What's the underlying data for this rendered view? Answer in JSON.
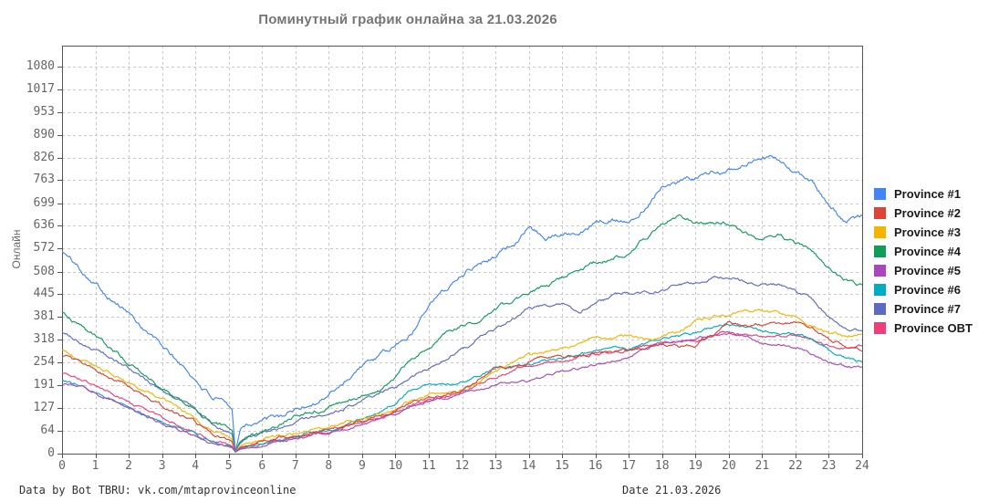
{
  "footer": {
    "left": "Data by Bot TBRU: vk.com/mtaprovinceonline",
    "right": "Date 21.03.2026"
  },
  "chart_data": {
    "type": "line",
    "title": "Поминутный график онлайна за 21.03.2026",
    "xlabel": "",
    "ylabel": "Онлайн",
    "xlim": [
      0,
      24
    ],
    "ylim": [
      0,
      1144
    ],
    "x_ticks": [
      0,
      1,
      2,
      3,
      4,
      5,
      6,
      7,
      8,
      9,
      10,
      11,
      12,
      13,
      14,
      15,
      16,
      17,
      18,
      19,
      20,
      21,
      22,
      23,
      24
    ],
    "y_ticks": [
      0,
      64,
      127,
      191,
      254,
      318,
      381,
      445,
      508,
      572,
      636,
      699,
      763,
      826,
      890,
      953,
      1017,
      1080
    ],
    "grid": "dashed",
    "legend_position": "right",
    "annotation": "all series drop to ~0 at ~05:10 (server restart) then recover",
    "hours": [
      0,
      0.5,
      1,
      1.5,
      2,
      2.5,
      3,
      3.5,
      4,
      4.5,
      5,
      5.1,
      5.2,
      5.35,
      5.5,
      6,
      6.5,
      7,
      7.5,
      8,
      8.5,
      9,
      9.5,
      10,
      10.5,
      11,
      11.5,
      12,
      12.5,
      13,
      13.5,
      14,
      14.5,
      15,
      15.5,
      16,
      16.5,
      17,
      17.5,
      18,
      18.5,
      19,
      19.5,
      20,
      20.5,
      21,
      21.5,
      22,
      22.5,
      23,
      23.5,
      24
    ],
    "series": [
      {
        "name": "Province #1",
        "color": "#4285F4",
        "seed": 101,
        "noise": 9,
        "values": [
          565,
          520,
          478,
          432,
          392,
          345,
          300,
          255,
          205,
          158,
          130,
          122,
          6,
          70,
          85,
          93,
          100,
          122,
          140,
          162,
          205,
          248,
          268,
          300,
          335,
          425,
          458,
          505,
          532,
          556,
          580,
          635,
          598,
          612,
          625,
          642,
          658,
          642,
          690,
          752,
          758,
          768,
          782,
          792,
          806,
          818,
          822,
          782,
          762,
          692,
          648,
          662
        ]
      },
      {
        "name": "Province #2",
        "color": "#DB4437",
        "seed": 102,
        "noise": 6,
        "values": [
          272,
          254,
          232,
          210,
          186,
          160,
          135,
          110,
          85,
          55,
          40,
          35,
          6,
          18,
          24,
          34,
          45,
          52,
          60,
          68,
          80,
          92,
          105,
          120,
          140,
          155,
          165,
          172,
          208,
          246,
          244,
          262,
          270,
          272,
          276,
          280,
          286,
          290,
          296,
          306,
          300,
          304,
          332,
          366,
          360,
          362,
          366,
          366,
          350,
          318,
          300,
          290
        ]
      },
      {
        "name": "Province #3",
        "color": "#F4B400",
        "seed": 103,
        "noise": 6,
        "values": [
          290,
          268,
          246,
          224,
          200,
          175,
          150,
          124,
          96,
          62,
          46,
          40,
          7,
          22,
          30,
          40,
          50,
          58,
          65,
          73,
          85,
          96,
          110,
          126,
          150,
          165,
          172,
          178,
          200,
          230,
          256,
          271,
          285,
          296,
          310,
          322,
          326,
          328,
          320,
          324,
          346,
          366,
          380,
          392,
          406,
          400,
          390,
          379,
          360,
          338,
          330,
          336
        ]
      },
      {
        "name": "Province #4",
        "color": "#0F9D58",
        "seed": 104,
        "noise": 7,
        "values": [
          390,
          358,
          326,
          292,
          256,
          216,
          182,
          152,
          126,
          86,
          70,
          64,
          8,
          35,
          45,
          62,
          85,
          104,
          114,
          126,
          146,
          158,
          172,
          215,
          272,
          300,
          330,
          356,
          376,
          400,
          426,
          450,
          470,
          490,
          514,
          534,
          546,
          560,
          602,
          640,
          664,
          648,
          650,
          645,
          618,
          602,
          614,
          586,
          570,
          516,
          482,
          470
        ]
      },
      {
        "name": "Province #5",
        "color": "#AB47BC",
        "seed": 105,
        "noise": 5,
        "values": [
          196,
          184,
          166,
          148,
          128,
          108,
          88,
          68,
          48,
          30,
          20,
          17,
          5,
          12,
          15,
          22,
          32,
          42,
          50,
          58,
          70,
          82,
          95,
          110,
          132,
          146,
          158,
          166,
          180,
          190,
          198,
          205,
          215,
          227,
          238,
          247,
          258,
          268,
          290,
          306,
          310,
          319,
          330,
          341,
          330,
          312,
          305,
          298,
          280,
          252,
          240,
          247
        ]
      },
      {
        "name": "Province #6",
        "color": "#00ACC1",
        "seed": 106,
        "noise": 5,
        "values": [
          206,
          192,
          172,
          152,
          131,
          110,
          90,
          70,
          50,
          32,
          22,
          18,
          4,
          14,
          18,
          26,
          36,
          46,
          56,
          66,
          80,
          96,
          116,
          142,
          178,
          190,
          196,
          198,
          212,
          236,
          246,
          250,
          256,
          264,
          276,
          286,
          296,
          298,
          310,
          320,
          326,
          336,
          350,
          360,
          354,
          344,
          340,
          336,
          320,
          290,
          268,
          254
        ]
      },
      {
        "name": "Province #7",
        "color": "#5C6BC0",
        "seed": 107,
        "noise": 6,
        "values": [
          336,
          314,
          290,
          264,
          236,
          206,
          176,
          150,
          124,
          82,
          62,
          56,
          7,
          30,
          40,
          55,
          72,
          90,
          100,
          112,
          130,
          148,
          166,
          186,
          212,
          236,
          262,
          290,
          320,
          346,
          376,
          404,
          410,
          418,
          392,
          420,
          436,
          445,
          450,
          456,
          470,
          480,
          494,
          490,
          480,
          470,
          470,
          455,
          430,
          380,
          348,
          342
        ]
      },
      {
        "name": "Province OBT",
        "color": "#EC407A",
        "seed": 108,
        "noise": 5,
        "values": [
          226,
          210,
          190,
          168,
          146,
          122,
          100,
          80,
          58,
          36,
          25,
          21,
          5,
          14,
          19,
          28,
          38,
          48,
          56,
          64,
          76,
          88,
          100,
          116,
          136,
          150,
          162,
          170,
          192,
          216,
          232,
          246,
          256,
          262,
          268,
          274,
          280,
          288,
          298,
          306,
          310,
          316,
          326,
          336,
          330,
          326,
          330,
          330,
          318,
          302,
          296,
          300
        ]
      }
    ]
  }
}
